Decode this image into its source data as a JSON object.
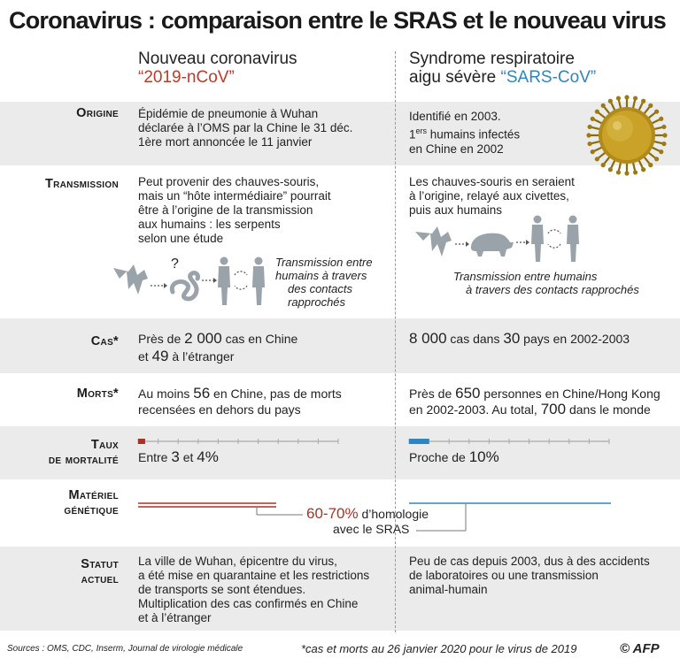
{
  "title": "Coronavirus : comparaison entre le SRAS et le nouveau virus",
  "columns": {
    "left_line1": "Nouveau coronavirus",
    "left_line2": "“2019-nCoV”",
    "right_line1": "Syndrome respiratoire",
    "right_line2_a": "aigu sévère ",
    "right_line2_b": "“SARS-CoV”"
  },
  "rows": {
    "origine": {
      "label": "Origine",
      "left_1": "Épidémie de pneumonie à Wuhan",
      "left_2": "déclarée à l’OMS par la Chine le 31 déc.",
      "left_3": "1ère mort annoncée le 11 janvier",
      "right_1": "Identifié en 2003.",
      "right_2_num": "1",
      "right_2_sup": "ers",
      "right_2_rest": " humains infectés",
      "right_3": "en Chine en 2002"
    },
    "transmission": {
      "label": "Transmission",
      "left_1": "Peut provenir des chauves-souris,",
      "left_2": "mais un “hôte intermédiaire” pourrait",
      "left_3": "être à l’origine de la transmission",
      "left_4": "aux humains : les serpents",
      "left_5": "selon une étude",
      "left_question": "?",
      "left_cap_1": "Transmission entre",
      "left_cap_2": "humains à travers",
      "left_cap_3": "des contacts",
      "left_cap_4": "rapprochés",
      "right_1": "Les chauves-souris en seraient",
      "right_2": "à l’origine, relayé aux civettes,",
      "right_3": "puis aux humains",
      "right_cap_1": "Transmission entre humains",
      "right_cap_2": "à travers des contacts rapprochés"
    },
    "cas": {
      "label": "Cas*",
      "left_a": "Près de ",
      "left_num": "2 000",
      "left_b": " cas en Chine",
      "left_num2": "49",
      "left_c": " à l’étranger",
      "left_et": "et ",
      "right_num": "8 000",
      "right_a": " cas dans ",
      "right_num2": "30",
      "right_b": " pays en 2002-2003"
    },
    "morts": {
      "label": "Morts*",
      "left_a": "Au moins ",
      "left_num": "56",
      "left_b": " en Chine, pas de morts",
      "left_2": "recensées en dehors du pays",
      "right_a": "Près de ",
      "right_num": "650",
      "right_b": " personnes en Chine/Hong Kong",
      "right_c": "en 2002-2003. Au total, ",
      "right_num2": "700",
      "right_d": " dans le monde"
    },
    "taux": {
      "label_1": "Taux",
      "label_2": "de mortalité",
      "left_a": "Entre ",
      "left_num": "3",
      "left_b": " et ",
      "left_num2": "4%",
      "right_a": "Proche de ",
      "right_num": "10%",
      "left_value_pct": 3.5,
      "right_value_pct": 10
    },
    "genetique": {
      "label_1": "Matériel",
      "label_2": "génétique",
      "homology": "60-70%",
      "homology_rest": " d’homologie",
      "homology_2": "avec le SRAS"
    },
    "statut": {
      "label_1": "Statut",
      "label_2": "actuel",
      "left_1": "La ville de Wuhan, épicentre du virus,",
      "left_2": "a été mise en quarantaine et les restrictions",
      "left_3": "de transports se sont étendues.",
      "left_4": "Multiplication des cas confirmés en Chine",
      "left_5": "et à l’étranger",
      "right_1": "Peu de cas depuis 2003, dus à des accidents",
      "right_2": "de laboratoires ou une transmission",
      "right_3": "animal-humain"
    }
  },
  "footer": {
    "sources": "Sources : OMS, CDC, Inserm, Journal de virologie médicale",
    "note": "*cas et morts au 26 janvier 2020 pour le virus de 2019",
    "credit": "© AFP"
  },
  "colors": {
    "accent_red": "#a93226",
    "accent_blue": "#2e86c1",
    "band": "#ebebeb"
  }
}
